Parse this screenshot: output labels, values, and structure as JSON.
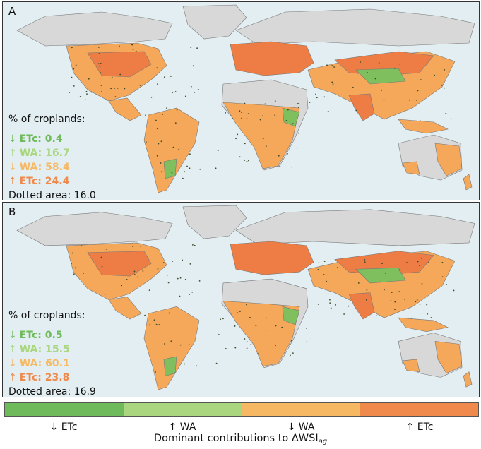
{
  "panels": [
    {
      "label": "A",
      "stats_heading": "% of croplands:",
      "rows": [
        {
          "arrow": "↓",
          "name": "ETc",
          "value": "0.4",
          "color": "#6fba5a"
        },
        {
          "arrow": "↑",
          "name": "WA",
          "value": "16.7",
          "color": "#a9d67f"
        },
        {
          "arrow": "↓",
          "name": "WA",
          "value": "58.4",
          "color": "#f7b863"
        },
        {
          "arrow": "↑",
          "name": "ETc",
          "value": "24.4",
          "color": "#ef8a4c"
        }
      ],
      "dotted_label": "Dotted area:",
      "dotted_value": "16.0"
    },
    {
      "label": "B",
      "stats_heading": "% of croplands:",
      "rows": [
        {
          "arrow": "↓",
          "name": "ETc",
          "value": "0.5",
          "color": "#6fba5a"
        },
        {
          "arrow": "↑",
          "name": "WA",
          "value": "15.5",
          "color": "#a9d67f"
        },
        {
          "arrow": "↓",
          "name": "WA",
          "value": "60.1",
          "color": "#f7b863"
        },
        {
          "arrow": "↑",
          "name": "ETc",
          "value": "23.8",
          "color": "#ef8a4c"
        }
      ],
      "dotted_label": "Dotted area:",
      "dotted_value": "16.9"
    }
  ],
  "colorbar": {
    "categories": [
      {
        "label": "↓ ETc",
        "color": "#6fba5a"
      },
      {
        "label": "↑ WA",
        "color": "#a9d67f"
      },
      {
        "label": "↓ WA",
        "color": "#f7b863"
      },
      {
        "label": "↑ ETc",
        "color": "#ef8a4c"
      }
    ],
    "title_main": "Dominant contributions to ΔWSI",
    "title_sub": "ag"
  },
  "map_colors": {
    "ocean": "#e2eef2",
    "land_no_data": "#d8d8d8",
    "cropland": "#f5a85a",
    "intense": "#ee7d45",
    "greening": "#7fbf5e",
    "dotted": "#3d4a2a"
  }
}
